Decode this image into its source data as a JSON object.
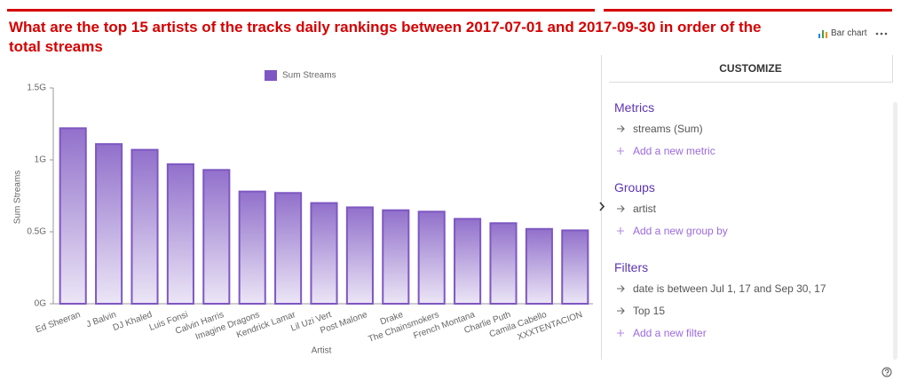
{
  "header": {
    "title": "What are the top 15 artists of the tracks daily rankings between 2017-07-01 and 2017-09-30 in order of the total streams",
    "chart_type_button": "Bar chart"
  },
  "chart_data": {
    "type": "bar",
    "legend": "Sum Streams",
    "y_label": "Sum Streams",
    "x_label": "Artist",
    "color": "#7e57c2",
    "grid": false,
    "categories": [
      "Ed Sheeran",
      "J Balvin",
      "DJ Khaled",
      "Luis Fonsi",
      "Calvin Harris",
      "Imagine Dragons",
      "Kendrick Lamar",
      "Lil Uzi Vert",
      "Post Malone",
      "Drake",
      "The Chainsmokers",
      "French Montana",
      "Charlie Puth",
      "Camila Cabello",
      "XXXTENTACION"
    ],
    "values": [
      1220000000,
      1110000000,
      1070000000,
      970000000,
      930000000,
      780000000,
      770000000,
      700000000,
      670000000,
      650000000,
      640000000,
      590000000,
      560000000,
      520000000,
      510000000
    ],
    "ylim": [
      0,
      1500000000
    ],
    "yticks": [
      {
        "value": 0,
        "label": "0G"
      },
      {
        "value": 500000000,
        "label": "0.5G"
      },
      {
        "value": 1000000000,
        "label": "1G"
      },
      {
        "value": 1500000000,
        "label": "1.5G"
      }
    ]
  },
  "customize": {
    "title": "CUSTOMIZE",
    "sections": [
      {
        "heading": "Metrics",
        "items": [
          "streams (Sum)"
        ],
        "add": "Add a new metric"
      },
      {
        "heading": "Groups",
        "items": [
          "artist"
        ],
        "add": "Add a new group by"
      },
      {
        "heading": "Filters",
        "items": [
          "date is between Jul 1, 17 and Sep 30, 17",
          "Top 15"
        ],
        "add": "Add a new filter"
      }
    ]
  }
}
